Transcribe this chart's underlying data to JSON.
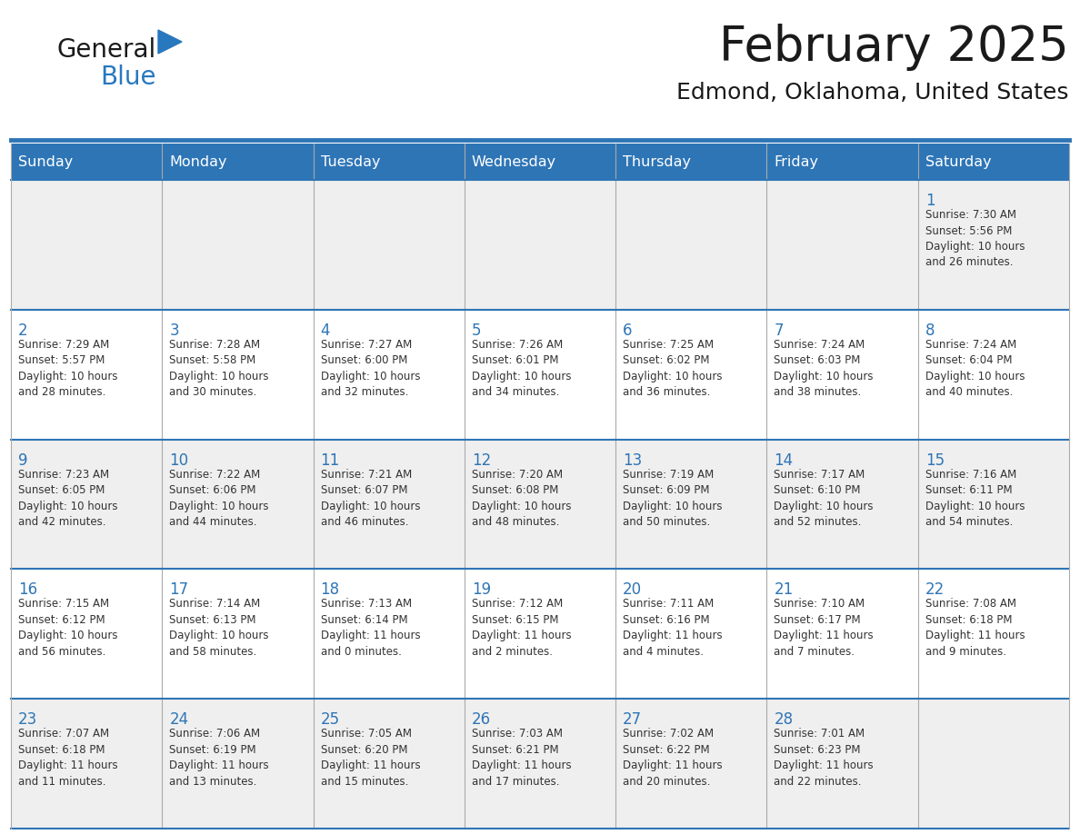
{
  "title": "February 2025",
  "subtitle": "Edmond, Oklahoma, United States",
  "header_bg": "#2E75B6",
  "header_text_color": "#FFFFFF",
  "cell_bg_gray": "#EFEFEF",
  "cell_bg_white": "#FFFFFF",
  "day_number_color": "#2E75B6",
  "info_text_color": "#333333",
  "border_color": "#2E75B6",
  "days_of_week": [
    "Sunday",
    "Monday",
    "Tuesday",
    "Wednesday",
    "Thursday",
    "Friday",
    "Saturday"
  ],
  "weeks": [
    [
      {
        "day": null,
        "info": ""
      },
      {
        "day": null,
        "info": ""
      },
      {
        "day": null,
        "info": ""
      },
      {
        "day": null,
        "info": ""
      },
      {
        "day": null,
        "info": ""
      },
      {
        "day": null,
        "info": ""
      },
      {
        "day": 1,
        "info": "Sunrise: 7:30 AM\nSunset: 5:56 PM\nDaylight: 10 hours\nand 26 minutes."
      }
    ],
    [
      {
        "day": 2,
        "info": "Sunrise: 7:29 AM\nSunset: 5:57 PM\nDaylight: 10 hours\nand 28 minutes."
      },
      {
        "day": 3,
        "info": "Sunrise: 7:28 AM\nSunset: 5:58 PM\nDaylight: 10 hours\nand 30 minutes."
      },
      {
        "day": 4,
        "info": "Sunrise: 7:27 AM\nSunset: 6:00 PM\nDaylight: 10 hours\nand 32 minutes."
      },
      {
        "day": 5,
        "info": "Sunrise: 7:26 AM\nSunset: 6:01 PM\nDaylight: 10 hours\nand 34 minutes."
      },
      {
        "day": 6,
        "info": "Sunrise: 7:25 AM\nSunset: 6:02 PM\nDaylight: 10 hours\nand 36 minutes."
      },
      {
        "day": 7,
        "info": "Sunrise: 7:24 AM\nSunset: 6:03 PM\nDaylight: 10 hours\nand 38 minutes."
      },
      {
        "day": 8,
        "info": "Sunrise: 7:24 AM\nSunset: 6:04 PM\nDaylight: 10 hours\nand 40 minutes."
      }
    ],
    [
      {
        "day": 9,
        "info": "Sunrise: 7:23 AM\nSunset: 6:05 PM\nDaylight: 10 hours\nand 42 minutes."
      },
      {
        "day": 10,
        "info": "Sunrise: 7:22 AM\nSunset: 6:06 PM\nDaylight: 10 hours\nand 44 minutes."
      },
      {
        "day": 11,
        "info": "Sunrise: 7:21 AM\nSunset: 6:07 PM\nDaylight: 10 hours\nand 46 minutes."
      },
      {
        "day": 12,
        "info": "Sunrise: 7:20 AM\nSunset: 6:08 PM\nDaylight: 10 hours\nand 48 minutes."
      },
      {
        "day": 13,
        "info": "Sunrise: 7:19 AM\nSunset: 6:09 PM\nDaylight: 10 hours\nand 50 minutes."
      },
      {
        "day": 14,
        "info": "Sunrise: 7:17 AM\nSunset: 6:10 PM\nDaylight: 10 hours\nand 52 minutes."
      },
      {
        "day": 15,
        "info": "Sunrise: 7:16 AM\nSunset: 6:11 PM\nDaylight: 10 hours\nand 54 minutes."
      }
    ],
    [
      {
        "day": 16,
        "info": "Sunrise: 7:15 AM\nSunset: 6:12 PM\nDaylight: 10 hours\nand 56 minutes."
      },
      {
        "day": 17,
        "info": "Sunrise: 7:14 AM\nSunset: 6:13 PM\nDaylight: 10 hours\nand 58 minutes."
      },
      {
        "day": 18,
        "info": "Sunrise: 7:13 AM\nSunset: 6:14 PM\nDaylight: 11 hours\nand 0 minutes."
      },
      {
        "day": 19,
        "info": "Sunrise: 7:12 AM\nSunset: 6:15 PM\nDaylight: 11 hours\nand 2 minutes."
      },
      {
        "day": 20,
        "info": "Sunrise: 7:11 AM\nSunset: 6:16 PM\nDaylight: 11 hours\nand 4 minutes."
      },
      {
        "day": 21,
        "info": "Sunrise: 7:10 AM\nSunset: 6:17 PM\nDaylight: 11 hours\nand 7 minutes."
      },
      {
        "day": 22,
        "info": "Sunrise: 7:08 AM\nSunset: 6:18 PM\nDaylight: 11 hours\nand 9 minutes."
      }
    ],
    [
      {
        "day": 23,
        "info": "Sunrise: 7:07 AM\nSunset: 6:18 PM\nDaylight: 11 hours\nand 11 minutes."
      },
      {
        "day": 24,
        "info": "Sunrise: 7:06 AM\nSunset: 6:19 PM\nDaylight: 11 hours\nand 13 minutes."
      },
      {
        "day": 25,
        "info": "Sunrise: 7:05 AM\nSunset: 6:20 PM\nDaylight: 11 hours\nand 15 minutes."
      },
      {
        "day": 26,
        "info": "Sunrise: 7:03 AM\nSunset: 6:21 PM\nDaylight: 11 hours\nand 17 minutes."
      },
      {
        "day": 27,
        "info": "Sunrise: 7:02 AM\nSunset: 6:22 PM\nDaylight: 11 hours\nand 20 minutes."
      },
      {
        "day": 28,
        "info": "Sunrise: 7:01 AM\nSunset: 6:23 PM\nDaylight: 11 hours\nand 22 minutes."
      },
      {
        "day": null,
        "info": ""
      }
    ]
  ]
}
